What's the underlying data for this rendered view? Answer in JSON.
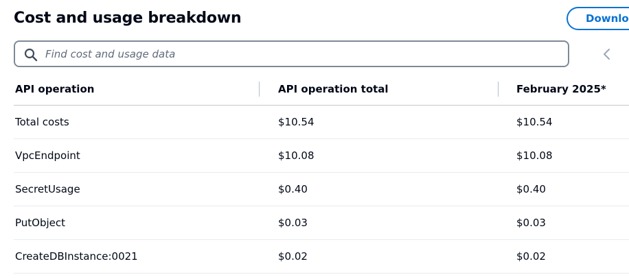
{
  "header": {
    "title": "Cost and usage breakdown",
    "download_label": "Download CSV"
  },
  "search": {
    "placeholder": "Find cost and usage data"
  },
  "table": {
    "columns": [
      "API operation",
      "API operation total",
      "February 2025*"
    ],
    "rows": [
      [
        "Total costs",
        "$10.54",
        "$10.54"
      ],
      [
        "VpcEndpoint",
        "$10.08",
        "$10.08"
      ],
      [
        "SecretUsage",
        "$0.40",
        "$0.40"
      ],
      [
        "PutObject",
        "$0.03",
        "$0.03"
      ],
      [
        "CreateDBInstance:0021",
        "$0.02",
        "$0.02"
      ]
    ]
  },
  "icons": {
    "search": "search-icon",
    "prev": "chevron-left-icon"
  },
  "colors": {
    "accent": "#0972d3",
    "text": "#000716",
    "placeholder": "#5f6b7a",
    "border": "#7d8998"
  }
}
